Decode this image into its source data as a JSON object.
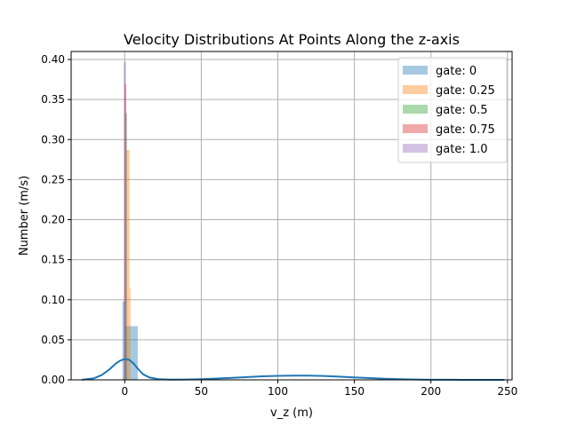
{
  "chart_data": {
    "type": "bar",
    "title": "Velocity Distributions At Points Along the z-axis",
    "xlabel": "v_z (m)",
    "ylabel": "Number (m/s)",
    "xlim": [
      -35,
      253
    ],
    "ylim": [
      0,
      0.41
    ],
    "x_ticks": [
      0,
      50,
      100,
      150,
      200,
      250
    ],
    "y_ticks": [
      0.0,
      0.05,
      0.1,
      0.15,
      0.2,
      0.25,
      0.3,
      0.35,
      0.4
    ],
    "grid": true,
    "legend_position": "top-right",
    "series": [
      {
        "name": "gate: 0",
        "color": "#1f77b4",
        "bins": [
          {
            "x0": 0.5,
            "x1": 8.5,
            "value": 0.067
          },
          {
            "x0": -1.5,
            "x1": 0.5,
            "value": 0.098
          }
        ]
      },
      {
        "name": "gate: 0.25",
        "color": "#ff7f0e",
        "bins": [
          {
            "x0": 1.0,
            "x1": 3.2,
            "value": 0.287
          },
          {
            "x0": 3.2,
            "x1": 3.8,
            "value": 0.115
          }
        ]
      },
      {
        "name": "gate: 0.5",
        "color": "#2ca02c",
        "bins": [
          {
            "x0": 0.3,
            "x1": 1.6,
            "value": 0.333
          }
        ]
      },
      {
        "name": "gate: 0.75",
        "color": "#d62728",
        "bins": [
          {
            "x0": -0.2,
            "x1": 1.0,
            "value": 0.369
          }
        ]
      },
      {
        "name": "gate: 1.0",
        "color": "#9467bd",
        "bins": [
          {
            "x0": -0.6,
            "x1": 0.8,
            "value": 0.397
          }
        ]
      }
    ],
    "kde": {
      "color": "#1f77b4",
      "x": [
        -28,
        -20,
        -15,
        -10,
        -6,
        -3,
        0,
        3,
        6,
        9,
        12,
        16,
        22,
        30,
        40,
        50,
        60,
        70,
        80,
        90,
        100,
        110,
        120,
        130,
        140,
        150,
        160,
        170,
        180,
        190,
        200,
        210,
        220,
        230,
        240,
        248
      ],
      "y": [
        0.0002,
        0.002,
        0.006,
        0.013,
        0.02,
        0.024,
        0.026,
        0.025,
        0.02,
        0.013,
        0.007,
        0.003,
        0.0008,
        0.0003,
        0.0004,
        0.0009,
        0.0016,
        0.0025,
        0.0035,
        0.0044,
        0.005,
        0.0053,
        0.0052,
        0.0048,
        0.004,
        0.0031,
        0.0022,
        0.0014,
        0.0008,
        0.0004,
        0.0002,
        0.0001,
        5e-05,
        2e-05,
        1e-05,
        0.0
      ]
    }
  }
}
